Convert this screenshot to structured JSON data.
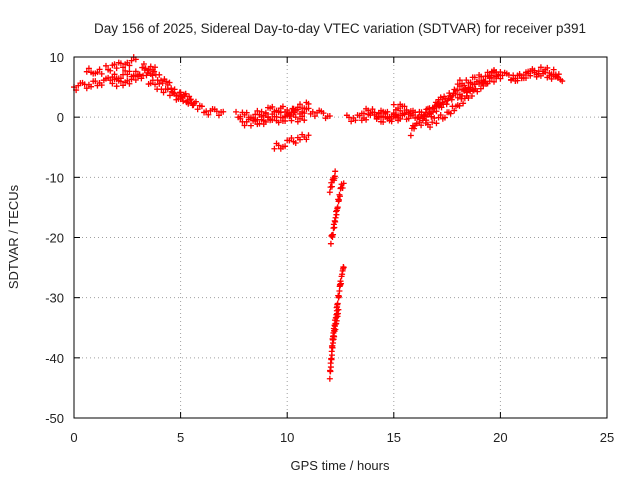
{
  "chart_data": {
    "type": "scatter",
    "title": "Day 156 of 2025, Sidereal Day-to-day VTEC variation (SDTVAR) for receiver p391",
    "xlabel": "GPS time / hours",
    "ylabel": "SDTVAR / TECUs",
    "xlim": [
      0,
      25
    ],
    "ylim": [
      -50,
      10
    ],
    "xticks": [
      0,
      5,
      10,
      15,
      20,
      25
    ],
    "yticks": [
      -50,
      -40,
      -30,
      -20,
      -10,
      0,
      10
    ],
    "grid": true,
    "marker": "+",
    "series": [
      {
        "name": "SDTVAR",
        "color": "#ff0000",
        "tracks": [
          [
            [
              0.0,
              5.0
            ],
            [
              0.4,
              5.2
            ],
            [
              0.8,
              5.5
            ],
            [
              1.2,
              5.8
            ],
            [
              1.6,
              6.0
            ],
            [
              2.0,
              6.3
            ]
          ],
          [
            [
              0.6,
              7.5
            ],
            [
              1.0,
              7.8
            ],
            [
              1.3,
              7.2
            ]
          ],
          [
            [
              1.5,
              8.0
            ],
            [
              2.0,
              8.5
            ],
            [
              2.5,
              9.0
            ],
            [
              2.9,
              9.6
            ]
          ],
          [
            [
              1.8,
              6.5
            ],
            [
              2.2,
              7.0
            ],
            [
              2.6,
              7.3
            ],
            [
              3.0,
              7.0
            ]
          ],
          [
            [
              2.0,
              5.5
            ],
            [
              2.5,
              6.0
            ],
            [
              3.0,
              6.5
            ],
            [
              3.4,
              7.5
            ],
            [
              3.8,
              8.3
            ]
          ],
          [
            [
              3.2,
              8.5
            ],
            [
              3.6,
              7.5
            ],
            [
              4.0,
              6.5
            ],
            [
              4.4,
              5.5
            ],
            [
              4.8,
              4.0
            ],
            [
              5.2,
              3.0
            ],
            [
              5.6,
              2.0
            ]
          ],
          [
            [
              3.5,
              6.0
            ],
            [
              4.0,
              5.0
            ],
            [
              4.5,
              4.0
            ],
            [
              5.0,
              3.0
            ]
          ],
          [
            [
              5.0,
              4.0
            ],
            [
              5.4,
              3.0
            ],
            [
              5.8,
              1.8
            ],
            [
              6.2,
              1.0
            ],
            [
              6.6,
              0.8
            ],
            [
              7.0,
              0.9
            ]
          ],
          [
            [
              7.6,
              0.5
            ],
            [
              8.0,
              0.2
            ],
            [
              8.4,
              0.4
            ],
            [
              8.8,
              0.6
            ],
            [
              9.2,
              1.2
            ],
            [
              9.6,
              1.5
            ],
            [
              10.0,
              1.0
            ],
            [
              10.4,
              0.8
            ],
            [
              10.8,
              1.2
            ],
            [
              11.2,
              0.8
            ],
            [
              11.6,
              0.5
            ],
            [
              12.0,
              0.2
            ]
          ],
          [
            [
              7.8,
              -0.8
            ],
            [
              8.3,
              -0.9
            ],
            [
              8.8,
              -0.7
            ],
            [
              9.3,
              -0.5
            ],
            [
              9.8,
              -0.3
            ],
            [
              10.3,
              0.0
            ],
            [
              10.8,
              -0.5
            ]
          ],
          [
            [
              8.5,
              -0.2
            ],
            [
              9.0,
              0.0
            ],
            [
              9.5,
              0.5
            ],
            [
              10.0,
              0.3
            ],
            [
              10.5,
              1.5
            ],
            [
              11.0,
              2.2
            ]
          ],
          [
            [
              9.4,
              -5.0
            ],
            [
              9.8,
              -4.6
            ],
            [
              10.2,
              -4.0
            ],
            [
              10.6,
              -3.6
            ],
            [
              11.0,
              -3.0
            ]
          ],
          [
            [
              12.0,
              -12.0
            ],
            [
              12.1,
              -11.0
            ],
            [
              12.2,
              -10.0
            ],
            [
              12.25,
              -9.0
            ]
          ],
          [
            [
              12.05,
              -20.5
            ],
            [
              12.15,
              -19.0
            ],
            [
              12.25,
              -17.0
            ],
            [
              12.35,
              -15.0
            ],
            [
              12.45,
              -13.0
            ],
            [
              12.55,
              -11.5
            ],
            [
              12.65,
              -11.0
            ]
          ],
          [
            [
              12.0,
              -43.0
            ],
            [
              12.05,
              -41.0
            ],
            [
              12.1,
              -39.0
            ],
            [
              12.15,
              -37.0
            ],
            [
              12.2,
              -35.0
            ],
            [
              12.3,
              -33.0
            ],
            [
              12.35,
              -31.0
            ],
            [
              12.45,
              -29.0
            ],
            [
              12.5,
              -27.5
            ],
            [
              12.6,
              -26.0
            ],
            [
              12.65,
              -25.0
            ]
          ],
          [
            [
              12.1,
              -37.5
            ],
            [
              12.2,
              -36.0
            ],
            [
              12.3,
              -34.0
            ],
            [
              12.4,
              -32.0
            ]
          ],
          [
            [
              12.8,
              -0.2
            ],
            [
              13.2,
              -0.1
            ],
            [
              13.6,
              0.0
            ],
            [
              14.0,
              0.3
            ],
            [
              14.4,
              0.5
            ],
            [
              14.8,
              0.2
            ],
            [
              15.2,
              0.0
            ]
          ],
          [
            [
              13.5,
              1.0
            ],
            [
              14.0,
              0.8
            ],
            [
              14.5,
              0.5
            ],
            [
              15.0,
              0.4
            ],
            [
              15.5,
              0.6
            ],
            [
              16.0,
              0.8
            ]
          ],
          [
            [
              14.2,
              -0.5
            ],
            [
              14.8,
              -0.3
            ],
            [
              15.4,
              0.0
            ],
            [
              16.0,
              0.2
            ],
            [
              16.5,
              0.8
            ]
          ],
          [
            [
              15.0,
              1.8
            ],
            [
              15.4,
              1.5
            ],
            [
              15.8,
              1.0
            ]
          ],
          [
            [
              15.8,
              -2.5
            ],
            [
              16.0,
              -1.0
            ],
            [
              16.3,
              0.0
            ],
            [
              16.6,
              1.0
            ],
            [
              16.9,
              1.8
            ],
            [
              17.2,
              2.5
            ],
            [
              17.6,
              3.5
            ],
            [
              18.0,
              4.5
            ],
            [
              18.4,
              5.0
            ],
            [
              18.8,
              5.5
            ]
          ],
          [
            [
              16.2,
              -1.0
            ],
            [
              16.6,
              0.0
            ],
            [
              17.0,
              1.5
            ],
            [
              17.4,
              2.5
            ],
            [
              17.8,
              3.5
            ],
            [
              18.2,
              4.0
            ],
            [
              18.6,
              5.0
            ],
            [
              19.0,
              5.5
            ],
            [
              19.4,
              6.0
            ],
            [
              19.8,
              6.5
            ]
          ],
          [
            [
              16.5,
              -1.5
            ],
            [
              17.0,
              -0.5
            ],
            [
              17.5,
              0.5
            ],
            [
              18.0,
              2.0
            ],
            [
              18.5,
              3.5
            ],
            [
              19.0,
              5.0
            ],
            [
              19.5,
              6.5
            ],
            [
              20.0,
              7.5
            ]
          ],
          [
            [
              17.0,
              2.5
            ],
            [
              17.3,
              3.0
            ]
          ],
          [
            [
              18.0,
              5.5
            ],
            [
              18.5,
              6.0
            ],
            [
              19.0,
              6.5
            ],
            [
              19.5,
              7.0
            ],
            [
              19.8,
              7.5
            ]
          ],
          [
            [
              19.5,
              7.5
            ],
            [
              19.9,
              7.0
            ],
            [
              20.3,
              6.8
            ],
            [
              20.7,
              6.5
            ],
            [
              21.1,
              7.0
            ],
            [
              21.5,
              7.2
            ],
            [
              21.9,
              7.3
            ],
            [
              22.3,
              7.0
            ],
            [
              22.7,
              6.5
            ]
          ],
          [
            [
              20.5,
              6.3
            ],
            [
              21.0,
              6.8
            ],
            [
              21.5,
              7.5
            ],
            [
              22.0,
              7.8
            ],
            [
              22.5,
              7.5
            ],
            [
              22.9,
              6.0
            ]
          ]
        ]
      }
    ]
  }
}
